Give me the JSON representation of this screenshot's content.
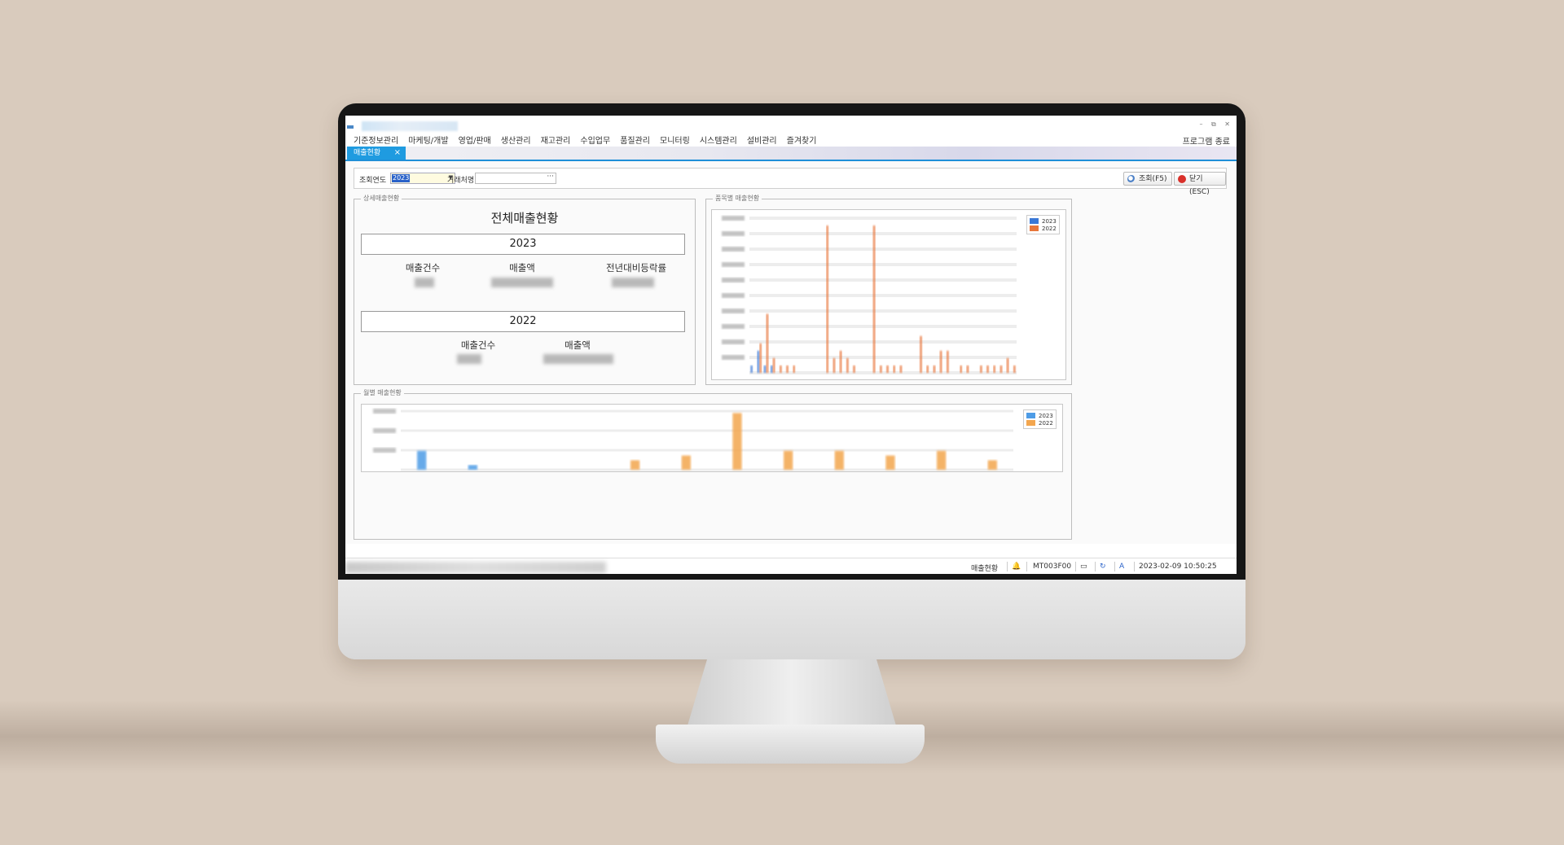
{
  "menu": {
    "items": [
      "기준정보관리",
      "마케팅/개발",
      "영업/판매",
      "생산관리",
      "재고관리",
      "수입업무",
      "품질관리",
      "모니터링",
      "시스템관리",
      "설비관리",
      "즐겨찾기"
    ],
    "exit_label": "프로그램 종료"
  },
  "tab": {
    "label": "매출현황",
    "close": "×"
  },
  "filter": {
    "year_label": "조회연도",
    "year_value": "2023",
    "customer_label": "거래처명",
    "customer_value": "",
    "dots": "···",
    "search_button": "조회(F5)",
    "close_button": "닫기(ESC)"
  },
  "detail": {
    "group_title": "상세매출현황",
    "heading": "전체매출현황",
    "current": {
      "year": "2023",
      "count_label": "매출건수",
      "amount_label": "매출액",
      "rate_label": "전년대비등락률"
    },
    "previous": {
      "year": "2022",
      "count_label": "매출건수",
      "amount_label": "매출액"
    }
  },
  "item_chart": {
    "group_title": "품목별 매출현황",
    "legend": [
      "2023",
      "2022"
    ]
  },
  "monthly_chart": {
    "group_title": "월별 매출현황",
    "legend": [
      "2023",
      "2022"
    ]
  },
  "colors": {
    "series_2023_item": "#3a78d6",
    "series_2022_item": "#e8763a",
    "series_2023_month": "#4e9ce6",
    "series_2022_month": "#f3a64e",
    "tab": "#1f9be0"
  },
  "chart_data": [
    {
      "type": "bar",
      "title": "품목별 매출현황",
      "series": [
        {
          "name": "2023",
          "values": [
            0.5,
            1.5,
            0.5,
            0.5,
            0,
            0,
            0,
            0,
            0,
            0,
            0,
            0,
            0,
            0,
            0,
            0,
            0,
            0,
            0,
            0,
            0,
            0,
            0,
            0,
            0,
            0,
            0,
            0,
            0,
            0,
            0,
            0,
            0,
            0,
            0,
            0,
            0,
            0,
            0,
            0
          ]
        },
        {
          "name": "2022",
          "values": [
            0,
            2,
            4,
            1,
            0.5,
            0.5,
            0.5,
            0,
            0,
            0,
            0,
            10,
            1,
            1.5,
            1,
            0.5,
            0,
            0,
            10,
            0.5,
            0.5,
            0.5,
            0.5,
            0,
            0,
            2.5,
            0.5,
            0.5,
            1.5,
            1.5,
            0,
            0.5,
            0.5,
            0,
            0.5,
            0.5,
            0.5,
            0.5,
            1,
            0.5
          ]
        }
      ]
    },
    {
      "type": "bar",
      "title": "월별 매출현황",
      "series": [
        {
          "name": "2023",
          "values": [
            2,
            0.5,
            0,
            0,
            0,
            0,
            0,
            0,
            0,
            0,
            0,
            0
          ]
        },
        {
          "name": "2022",
          "values": [
            0,
            0,
            0,
            0,
            1,
            1.5,
            6,
            2,
            2,
            1.5,
            2,
            1
          ]
        }
      ]
    }
  ],
  "status": {
    "screen_name": "매출현황",
    "program_id": "MT003F00",
    "datetime": "2023-02-09 10:50:25"
  }
}
